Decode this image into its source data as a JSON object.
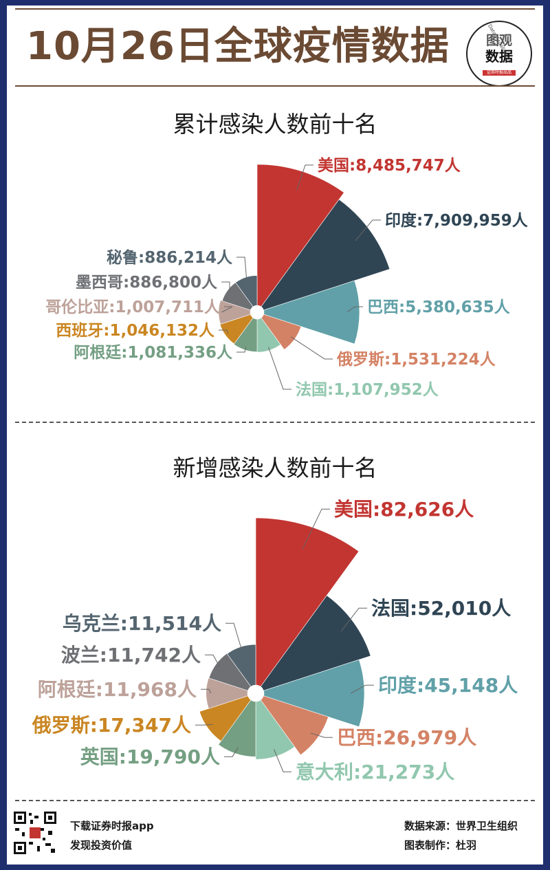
{
  "header": {
    "title": "10月26日全球疫情数据",
    "logo_line1": "图观",
    "logo_line2": "数据",
    "logo_tag": "证券时报出品",
    "logo_arc": "Data Visualization"
  },
  "chart_data": [
    {
      "type": "pie",
      "subtype": "nightingale-rose",
      "title": "累计感染人数前十名",
      "categories": [
        "美国",
        "印度",
        "巴西",
        "俄罗斯",
        "法国",
        "阿根廷",
        "西班牙",
        "哥伦比亚",
        "墨西哥",
        "秘鲁"
      ],
      "values": [
        8485747,
        7909959,
        5380635,
        1531224,
        1107952,
        1081336,
        1046132,
        1007711,
        886800,
        886214
      ],
      "labels": [
        "美国:8,485,747人",
        "印度:7,909,959人",
        "巴西:5,380,635人",
        "俄罗斯:1,531,224人",
        "法国:1,107,952人",
        "阿根廷:1,081,336人",
        "西班牙:1,046,132人",
        "哥伦比亚:1,007,711人",
        "墨西哥:886,800人",
        "秘鲁:886,214人"
      ],
      "colors": [
        "#c23531",
        "#2f4554",
        "#61a0a8",
        "#d48265",
        "#91c7ae",
        "#749f83",
        "#ca8622",
        "#bda29a",
        "#6e7074",
        "#546570"
      ]
    },
    {
      "type": "pie",
      "subtype": "nightingale-rose",
      "title": "新增感染人数前十名",
      "categories": [
        "美国",
        "法国",
        "印度",
        "巴西",
        "意大利",
        "英国",
        "俄罗斯",
        "阿根廷",
        "波兰",
        "乌克兰"
      ],
      "values": [
        82626,
        52010,
        45148,
        26979,
        21273,
        19790,
        17347,
        11968,
        11742,
        11514
      ],
      "labels": [
        "美国:82,626人",
        "法国:52,010人",
        "印度:45,148人",
        "巴西:26,979人",
        "意大利:21,273人",
        "英国:19,790人",
        "俄罗斯:17,347人",
        "阿根廷:11,968人",
        "波兰:11,742人",
        "乌克兰:11,514人"
      ],
      "colors": [
        "#c23531",
        "#2f4554",
        "#61a0a8",
        "#d48265",
        "#91c7ae",
        "#749f83",
        "#ca8622",
        "#bda29a",
        "#6e7074",
        "#546570"
      ]
    }
  ],
  "footer": {
    "download": "下载证券时报app",
    "slogan": "发现投资价值",
    "source": "数据来源：世界卫生组织",
    "author": "图表制作：杜羽"
  }
}
